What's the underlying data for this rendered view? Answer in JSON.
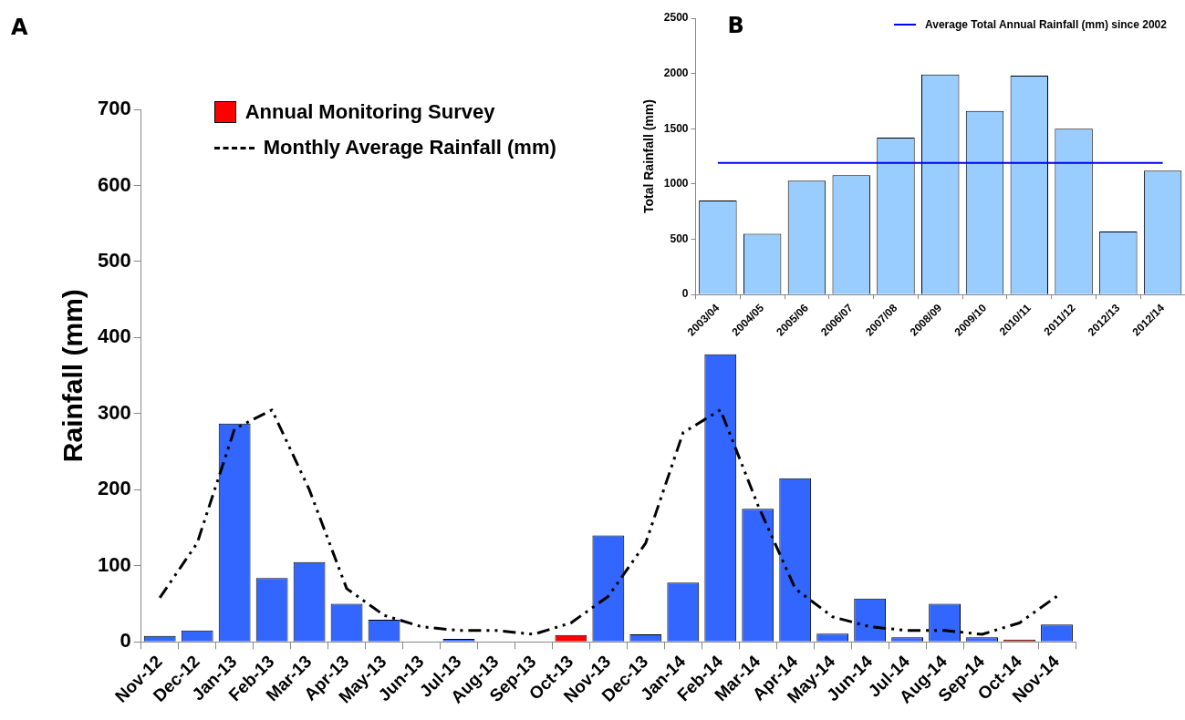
{
  "chart_data": [
    {
      "type": "bar",
      "title": "A",
      "ylabel": "Rainfall (mm)",
      "categories": [
        "Nov-12",
        "Dec-12",
        "Jan-13",
        "Feb-13",
        "Mar-13",
        "Apr-13",
        "May-13",
        "Jun-13",
        "Jul-13",
        "Aug-13",
        "Sep-13",
        "Oct-13",
        "Nov-13",
        "Dec-13",
        "Jan-14",
        "Feb-14",
        "Mar-14",
        "Apr-14",
        "May-14",
        "Jun-14",
        "Jul-14",
        "Aug-14",
        "Sep-14",
        "Oct-14",
        "Nov-14"
      ],
      "series": [
        {
          "color": "#3366ff",
          "values": [
            8,
            15,
            287,
            84,
            105,
            50,
            29,
            null,
            4,
            null,
            null,
            null,
            140,
            10,
            78,
            378,
            175,
            215,
            11,
            57,
            6,
            50,
            6,
            null,
            23
          ]
        },
        {
          "name": "Annual Monitoring Survey",
          "color": "#ff0000",
          "values": [
            null,
            null,
            null,
            null,
            null,
            null,
            null,
            null,
            null,
            null,
            null,
            9,
            null,
            null,
            null,
            null,
            null,
            null,
            null,
            null,
            null,
            null,
            null,
            3,
            null
          ]
        },
        {
          "name": "Monthly Average Rainfall (mm)",
          "type": "line",
          "color": "#000000",
          "line_style": "dashed",
          "values": [
            58,
            130,
            280,
            305,
            200,
            70,
            35,
            20,
            15,
            15,
            10,
            25,
            60,
            130,
            275,
            305,
            180,
            70,
            33,
            20,
            15,
            15,
            10,
            25,
            60
          ]
        }
      ],
      "stacked": true,
      "ylim": [
        0,
        700
      ],
      "yticks": [
        0,
        100,
        200,
        300,
        400,
        500,
        600,
        700
      ],
      "grid": false,
      "legend": "top left",
      "marker": "none"
    },
    {
      "type": "bar",
      "title": "B",
      "ylabel": "Total Rainfall (mm)",
      "categories": [
        "2003/04",
        "2004/05",
        "2005/06",
        "2006/07",
        "2007/08",
        "2008/09",
        "2009/10",
        "2010/11",
        "2011/12",
        "2012/13",
        "2012/14"
      ],
      "series": [
        {
          "color": "#99ccff",
          "values": [
            850,
            550,
            1030,
            1080,
            1420,
            1990,
            1660,
            1980,
            1500,
            570,
            1120
          ]
        },
        {
          "name": "Average Total Annual Rainfall (mm) since 2002",
          "type": "line",
          "color": "#0000ff",
          "line_style": "solid",
          "values": [
            1190,
            1190,
            1190,
            1190,
            1190,
            1190,
            1190,
            1190,
            1190,
            1190,
            1190
          ]
        }
      ],
      "ylim": [
        0,
        2500
      ],
      "yticks": [
        0,
        500,
        1000,
        1500,
        2000,
        2500
      ],
      "grid": false,
      "legend": "top right",
      "marker": "none"
    }
  ]
}
